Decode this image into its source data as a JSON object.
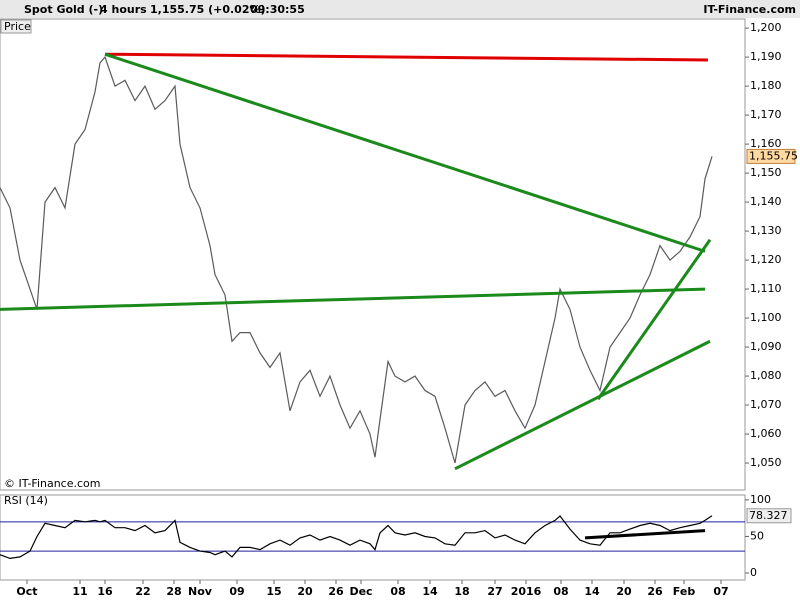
{
  "header": {
    "instrument": "Spot Gold (-)",
    "interval": "4 hours",
    "quote": "1,155.75 (+0.02%)",
    "time": "09:30:55",
    "brand": "IT-Finance.com"
  },
  "chart_data": [
    {
      "type": "line",
      "axis_label": "Price",
      "watermark": "© IT-Finance.com",
      "x": [
        0,
        10,
        20,
        30,
        37,
        45,
        55,
        65,
        75,
        85,
        95,
        100,
        105,
        115,
        125,
        135,
        145,
        155,
        165,
        175,
        180,
        190,
        200,
        210,
        215,
        225,
        232,
        240,
        250,
        260,
        270,
        280,
        290,
        300,
        310,
        320,
        330,
        340,
        350,
        360,
        370,
        375,
        380,
        388,
        395,
        405,
        415,
        425,
        435,
        445,
        455,
        465,
        475,
        485,
        495,
        505,
        515,
        525,
        535,
        545,
        555,
        560,
        570,
        580,
        590,
        600,
        610,
        620,
        630,
        640,
        650,
        660,
        670,
        680,
        690,
        700,
        705,
        712
      ],
      "xlim": [
        0,
        745
      ],
      "ylim": [
        1040.7,
        1202.8
      ],
      "yticks": [
        {
          "value": 1050,
          "label": "1,050"
        },
        {
          "value": 1060,
          "label": "1,060"
        },
        {
          "value": 1070,
          "label": "1,070"
        },
        {
          "value": 1080,
          "label": "1,080"
        },
        {
          "value": 1090,
          "label": "1,090"
        },
        {
          "value": 1100,
          "label": "1,100"
        },
        {
          "value": 1110,
          "label": "1,110"
        },
        {
          "value": 1120,
          "label": "1,120"
        },
        {
          "value": 1130,
          "label": "1,130"
        },
        {
          "value": 1140,
          "label": "1,140"
        },
        {
          "value": 1150,
          "label": "1,150"
        },
        {
          "value": 1160,
          "label": "1,160"
        },
        {
          "value": 1170,
          "label": "1,170"
        },
        {
          "value": 1180,
          "label": "1,180"
        },
        {
          "value": 1190,
          "label": "1,190"
        },
        {
          "value": 1200,
          "label": "1,200"
        }
      ],
      "series": [
        {
          "color": "#5a5a5a",
          "values": [
            1145,
            1138,
            1120,
            1110,
            1103,
            1140,
            1145,
            1138,
            1160,
            1165,
            1178,
            1188,
            1190,
            1180,
            1182,
            1175,
            1180,
            1172,
            1175,
            1180,
            1160,
            1145,
            1138,
            1125,
            1115,
            1108,
            1092,
            1095,
            1095,
            1088,
            1083,
            1088,
            1068,
            1078,
            1082,
            1073,
            1080,
            1070,
            1062,
            1068,
            1060,
            1052,
            1065,
            1085,
            1080,
            1078,
            1080,
            1075,
            1073,
            1062,
            1050,
            1070,
            1075,
            1078,
            1073,
            1075,
            1068,
            1062,
            1070,
            1085,
            1100,
            1110,
            1103,
            1090,
            1082,
            1075,
            1090,
            1095,
            1100,
            1108,
            1115,
            1125,
            1120,
            1123,
            1128,
            1135,
            1148,
            1155.75
          ]
        }
      ],
      "last_value_label": "1,155.75",
      "trendlines": [
        {
          "color": "#e00000",
          "points": [
            [
              105,
              1191
            ],
            [
              708,
              1189
            ]
          ]
        },
        {
          "color": "#1a8a1a",
          "points": [
            [
              105,
              1191
            ],
            [
              705,
              1123
            ]
          ]
        },
        {
          "color": "#1a8a1a",
          "points": [
            [
              0,
              1103
            ],
            [
              705,
              1110
            ]
          ]
        },
        {
          "color": "#1a8a1a",
          "points": [
            [
              455,
              1048
            ],
            [
              710,
              1092
            ]
          ]
        },
        {
          "color": "#1a8a1a",
          "points": [
            [
              598,
              1072
            ],
            [
              710,
              1127
            ]
          ]
        }
      ]
    },
    {
      "type": "line",
      "title": "RSI (14)",
      "x": [
        0,
        10,
        20,
        30,
        37,
        45,
        55,
        65,
        75,
        85,
        95,
        100,
        105,
        115,
        125,
        135,
        145,
        155,
        165,
        175,
        180,
        190,
        200,
        210,
        215,
        225,
        232,
        240,
        250,
        260,
        270,
        280,
        290,
        300,
        310,
        320,
        330,
        340,
        350,
        360,
        370,
        375,
        380,
        388,
        395,
        405,
        415,
        425,
        435,
        445,
        455,
        465,
        475,
        485,
        495,
        505,
        515,
        525,
        535,
        545,
        555,
        560,
        570,
        580,
        590,
        600,
        610,
        620,
        630,
        640,
        650,
        660,
        670,
        680,
        690,
        700,
        705,
        712
      ],
      "xlim": [
        0,
        745
      ],
      "ylim": [
        -9.6,
        104
      ],
      "yticks": [
        0,
        50,
        100
      ],
      "levels": [
        70,
        30
      ],
      "series": [
        {
          "color": "#000000",
          "values": [
            25,
            20,
            22,
            30,
            50,
            68,
            65,
            62,
            72,
            70,
            72,
            70,
            72,
            62,
            62,
            58,
            65,
            55,
            58,
            72,
            42,
            35,
            30,
            28,
            25,
            30,
            22,
            35,
            35,
            32,
            40,
            45,
            38,
            48,
            52,
            45,
            50,
            45,
            38,
            45,
            40,
            32,
            55,
            65,
            55,
            52,
            55,
            50,
            48,
            40,
            38,
            55,
            55,
            58,
            48,
            52,
            45,
            40,
            55,
            65,
            72,
            78,
            60,
            45,
            40,
            38,
            55,
            55,
            60,
            65,
            68,
            65,
            58,
            62,
            65,
            68,
            72,
            78.327
          ]
        }
      ],
      "trendlines": [
        {
          "color": "#000000",
          "points": [
            [
              585,
              48
            ],
            [
              705,
              58
            ]
          ]
        }
      ],
      "xticks": [
        {
          "value": 27,
          "label": "Oct"
        },
        {
          "value": 80,
          "label": "11"
        },
        {
          "value": 105,
          "label": "16"
        },
        {
          "value": 143,
          "label": "22"
        },
        {
          "value": 174,
          "label": "28"
        },
        {
          "value": 200,
          "label": "Nov"
        },
        {
          "value": 237,
          "label": "09"
        },
        {
          "value": 274,
          "label": "15"
        },
        {
          "value": 305,
          "label": "20"
        },
        {
          "value": 336,
          "label": "26"
        },
        {
          "value": 361,
          "label": "Dec"
        },
        {
          "value": 398,
          "label": "08"
        },
        {
          "value": 430,
          "label": "14"
        },
        {
          "value": 462,
          "label": "18"
        },
        {
          "value": 495,
          "label": "27"
        },
        {
          "value": 526,
          "label": "2016"
        },
        {
          "value": 561,
          "label": "08"
        },
        {
          "value": 592,
          "label": "14"
        },
        {
          "value": 624,
          "label": "20"
        },
        {
          "value": 655,
          "label": "26"
        },
        {
          "value": 684,
          "label": "Feb"
        },
        {
          "value": 721,
          "label": "07"
        }
      ]
    }
  ]
}
